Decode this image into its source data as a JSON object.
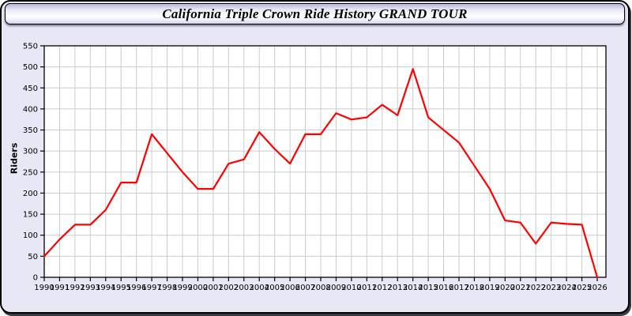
{
  "window": {
    "title": "California Triple Crown Ride History GRAND TOUR"
  },
  "colors": {
    "line": "#ff0000",
    "panel_bg": "#e7e7f6",
    "plot_bg": "#ffffff",
    "grid": "#cccccc",
    "axis": "#000000"
  },
  "chart_data": {
    "type": "line",
    "title": "California Triple Crown Ride History GRAND TOUR",
    "xlabel": "",
    "ylabel": "Riders",
    "ylim": [
      0,
      550
    ],
    "ytick_step": 50,
    "grid": true,
    "legend": "none",
    "x": [
      1990,
      1991,
      1992,
      1993,
      1994,
      1995,
      1996,
      1997,
      1998,
      1999,
      2000,
      2001,
      2002,
      2003,
      2004,
      2005,
      2006,
      2007,
      2008,
      2009,
      2010,
      2011,
      2012,
      2013,
      2014,
      2015,
      2016,
      2017,
      2018,
      2019,
      2020,
      2021,
      2022,
      2023,
      2024,
      2025,
      2026
    ],
    "series": [
      {
        "name": "Riders",
        "color": "#ff0000",
        "values": [
          50,
          90,
          125,
          125,
          160,
          225,
          225,
          340,
          295,
          250,
          210,
          210,
          270,
          280,
          345,
          305,
          270,
          340,
          340,
          390,
          375,
          380,
          410,
          385,
          495,
          380,
          350,
          320,
          265,
          210,
          135,
          130,
          80,
          130,
          127,
          125,
          0
        ]
      }
    ]
  }
}
